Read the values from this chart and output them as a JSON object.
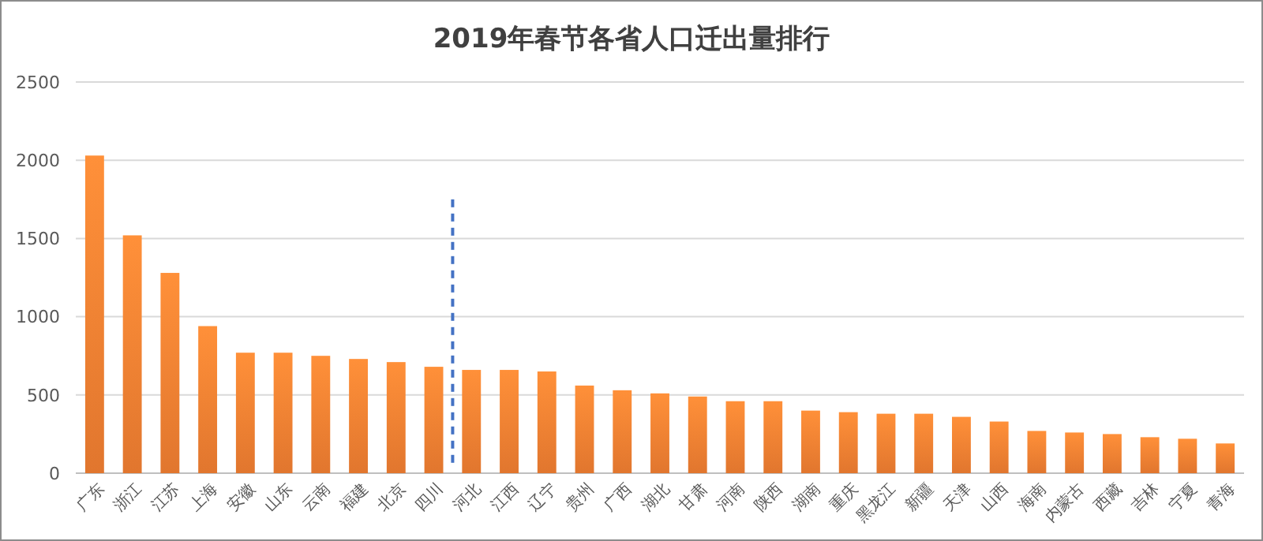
{
  "chart_data": {
    "type": "bar",
    "title": "2019年春节各省人口迁出量排行",
    "categories": [
      "广东",
      "浙江",
      "江苏",
      "上海",
      "安徽",
      "山东",
      "云南",
      "福建",
      "北京",
      "四川",
      "河北",
      "江西",
      "辽宁",
      "贵州",
      "广西",
      "湖北",
      "甘肃",
      "河南",
      "陕西",
      "湖南",
      "重庆",
      "黑龙江",
      "新疆",
      "天津",
      "山西",
      "海南",
      "内蒙古",
      "西藏",
      "吉林",
      "宁夏",
      "青海"
    ],
    "values": [
      2030,
      1520,
      1280,
      940,
      770,
      770,
      750,
      730,
      710,
      680,
      660,
      660,
      650,
      560,
      530,
      510,
      490,
      460,
      460,
      400,
      390,
      380,
      380,
      360,
      330,
      270,
      260,
      250,
      230,
      220,
      190
    ],
    "color": "#ed7d31",
    "ylim": [
      0,
      2500
    ],
    "yticks": [
      0,
      500,
      1000,
      1500,
      2000,
      2500
    ],
    "grid": "y"
  }
}
